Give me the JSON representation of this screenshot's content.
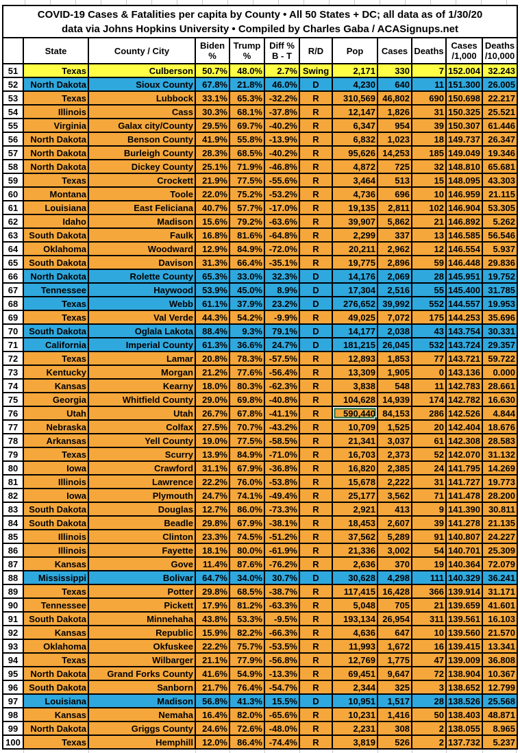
{
  "title": {
    "line1": "COVID-19 Cases & Fatalities per capita by County • All 50 States + DC; all data as of 1/30/20",
    "line2": "data via Johns Hopkins University • Compiled by Charles Gaba / ACASignups.net"
  },
  "colors": {
    "republican_row": "#F5A73B",
    "democratic_row": "#2FA8DE",
    "swing_row": "#FFFF45",
    "selection_border": "#1E7145",
    "grid_border": "#000000"
  },
  "selection": {
    "rank": "76",
    "column": "pop"
  },
  "columns": [
    {
      "key": "rank",
      "label": "",
      "align": "center"
    },
    {
      "key": "state",
      "label": "State",
      "align": "right"
    },
    {
      "key": "county",
      "label": "County / City",
      "align": "right"
    },
    {
      "key": "biden",
      "label": "Biden\n%",
      "align": "right"
    },
    {
      "key": "trump",
      "label": "Trump\n%",
      "align": "right"
    },
    {
      "key": "diff",
      "label": "Diff %\nB - T",
      "align": "right"
    },
    {
      "key": "rd",
      "label": "R/D",
      "align": "center"
    },
    {
      "key": "pop",
      "label": "Pop",
      "align": "right"
    },
    {
      "key": "cases",
      "label": "Cases",
      "align": "right"
    },
    {
      "key": "deaths",
      "label": "Deaths",
      "align": "right"
    },
    {
      "key": "cases_per_1000",
      "label": "Cases\n/1,000",
      "align": "right"
    },
    {
      "key": "deaths_per_10000",
      "label": "Deaths\n/10,000",
      "align": "right"
    }
  ],
  "rows": [
    {
      "rank": "51",
      "state": "Texas",
      "county": "Culberson",
      "biden": "50.7%",
      "trump": "48.0%",
      "diff": "2.7%",
      "rd": "Swing",
      "pop": "2,171",
      "cases": "330",
      "deaths": "7",
      "cases_per_1000": "152.004",
      "deaths_per_10000": "32.243"
    },
    {
      "rank": "52",
      "state": "North Dakota",
      "county": "Sioux County",
      "biden": "67.8%",
      "trump": "21.8%",
      "diff": "46.0%",
      "rd": "D",
      "pop": "4,230",
      "cases": "640",
      "deaths": "11",
      "cases_per_1000": "151.300",
      "deaths_per_10000": "26.005"
    },
    {
      "rank": "53",
      "state": "Texas",
      "county": "Lubbock",
      "biden": "33.1%",
      "trump": "65.3%",
      "diff": "-32.2%",
      "rd": "R",
      "pop": "310,569",
      "cases": "46,802",
      "deaths": "690",
      "cases_per_1000": "150.698",
      "deaths_per_10000": "22.217"
    },
    {
      "rank": "54",
      "state": "Illinois",
      "county": "Cass",
      "biden": "30.3%",
      "trump": "68.1%",
      "diff": "-37.8%",
      "rd": "R",
      "pop": "12,147",
      "cases": "1,826",
      "deaths": "31",
      "cases_per_1000": "150.325",
      "deaths_per_10000": "25.521"
    },
    {
      "rank": "55",
      "state": "Virginia",
      "county": "Galax city/County",
      "biden": "29.5%",
      "trump": "69.7%",
      "diff": "-40.2%",
      "rd": "R",
      "pop": "6,347",
      "cases": "954",
      "deaths": "39",
      "cases_per_1000": "150.307",
      "deaths_per_10000": "61.446"
    },
    {
      "rank": "56",
      "state": "North Dakota",
      "county": "Benson County",
      "biden": "41.9%",
      "trump": "55.8%",
      "diff": "-13.9%",
      "rd": "R",
      "pop": "6,832",
      "cases": "1,023",
      "deaths": "18",
      "cases_per_1000": "149.737",
      "deaths_per_10000": "26.347"
    },
    {
      "rank": "57",
      "state": "North Dakota",
      "county": "Burleigh County",
      "biden": "28.3%",
      "trump": "68.5%",
      "diff": "-40.2%",
      "rd": "R",
      "pop": "95,626",
      "cases": "14,253",
      "deaths": "185",
      "cases_per_1000": "149.049",
      "deaths_per_10000": "19.346"
    },
    {
      "rank": "58",
      "state": "North Dakota",
      "county": "Dickey County",
      "biden": "25.1%",
      "trump": "71.9%",
      "diff": "-46.8%",
      "rd": "R",
      "pop": "4,872",
      "cases": "725",
      "deaths": "32",
      "cases_per_1000": "148.810",
      "deaths_per_10000": "65.681"
    },
    {
      "rank": "59",
      "state": "Texas",
      "county": "Crockett",
      "biden": "21.9%",
      "trump": "77.5%",
      "diff": "-55.6%",
      "rd": "R",
      "pop": "3,464",
      "cases": "513",
      "deaths": "15",
      "cases_per_1000": "148.095",
      "deaths_per_10000": "43.303"
    },
    {
      "rank": "60",
      "state": "Montana",
      "county": "Toole",
      "biden": "22.0%",
      "trump": "75.2%",
      "diff": "-53.2%",
      "rd": "R",
      "pop": "4,736",
      "cases": "696",
      "deaths": "10",
      "cases_per_1000": "146.959",
      "deaths_per_10000": "21.115"
    },
    {
      "rank": "61",
      "state": "Louisiana",
      "county": "East Feliciana",
      "biden": "40.7%",
      "trump": "57.7%",
      "diff": "-17.0%",
      "rd": "R",
      "pop": "19,135",
      "cases": "2,811",
      "deaths": "102",
      "cases_per_1000": "146.904",
      "deaths_per_10000": "53.305"
    },
    {
      "rank": "62",
      "state": "Idaho",
      "county": "Madison",
      "biden": "15.6%",
      "trump": "79.2%",
      "diff": "-63.6%",
      "rd": "R",
      "pop": "39,907",
      "cases": "5,862",
      "deaths": "21",
      "cases_per_1000": "146.892",
      "deaths_per_10000": "5.262"
    },
    {
      "rank": "63",
      "state": "South Dakota",
      "county": "Faulk",
      "biden": "16.8%",
      "trump": "81.6%",
      "diff": "-64.8%",
      "rd": "R",
      "pop": "2,299",
      "cases": "337",
      "deaths": "13",
      "cases_per_1000": "146.585",
      "deaths_per_10000": "56.546"
    },
    {
      "rank": "64",
      "state": "Oklahoma",
      "county": "Woodward",
      "biden": "12.9%",
      "trump": "84.9%",
      "diff": "-72.0%",
      "rd": "R",
      "pop": "20,211",
      "cases": "2,962",
      "deaths": "12",
      "cases_per_1000": "146.554",
      "deaths_per_10000": "5.937"
    },
    {
      "rank": "65",
      "state": "South Dakota",
      "county": "Davison",
      "biden": "31.3%",
      "trump": "66.4%",
      "diff": "-35.1%",
      "rd": "R",
      "pop": "19,775",
      "cases": "2,896",
      "deaths": "59",
      "cases_per_1000": "146.448",
      "deaths_per_10000": "29.836"
    },
    {
      "rank": "66",
      "state": "North Dakota",
      "county": "Rolette County",
      "biden": "65.3%",
      "trump": "33.0%",
      "diff": "32.3%",
      "rd": "D",
      "pop": "14,176",
      "cases": "2,069",
      "deaths": "28",
      "cases_per_1000": "145.951",
      "deaths_per_10000": "19.752"
    },
    {
      "rank": "67",
      "state": "Tennessee",
      "county": "Haywood",
      "biden": "53.9%",
      "trump": "45.0%",
      "diff": "8.9%",
      "rd": "D",
      "pop": "17,304",
      "cases": "2,516",
      "deaths": "55",
      "cases_per_1000": "145.400",
      "deaths_per_10000": "31.785"
    },
    {
      "rank": "68",
      "state": "Texas",
      "county": "Webb",
      "biden": "61.1%",
      "trump": "37.9%",
      "diff": "23.2%",
      "rd": "D",
      "pop": "276,652",
      "cases": "39,992",
      "deaths": "552",
      "cases_per_1000": "144.557",
      "deaths_per_10000": "19.953"
    },
    {
      "rank": "69",
      "state": "Texas",
      "county": "Val Verde",
      "biden": "44.3%",
      "trump": "54.2%",
      "diff": "-9.9%",
      "rd": "R",
      "pop": "49,025",
      "cases": "7,072",
      "deaths": "175",
      "cases_per_1000": "144.253",
      "deaths_per_10000": "35.696"
    },
    {
      "rank": "70",
      "state": "South Dakota",
      "county": "Oglala Lakota",
      "biden": "88.4%",
      "trump": "9.3%",
      "diff": "79.1%",
      "rd": "D",
      "pop": "14,177",
      "cases": "2,038",
      "deaths": "43",
      "cases_per_1000": "143.754",
      "deaths_per_10000": "30.331"
    },
    {
      "rank": "71",
      "state": "California",
      "county": "Imperial County",
      "biden": "61.3%",
      "trump": "36.6%",
      "diff": "24.7%",
      "rd": "D",
      "pop": "181,215",
      "cases": "26,045",
      "deaths": "532",
      "cases_per_1000": "143.724",
      "deaths_per_10000": "29.357"
    },
    {
      "rank": "72",
      "state": "Texas",
      "county": "Lamar",
      "biden": "20.8%",
      "trump": "78.3%",
      "diff": "-57.5%",
      "rd": "R",
      "pop": "12,893",
      "cases": "1,853",
      "deaths": "77",
      "cases_per_1000": "143.721",
      "deaths_per_10000": "59.722"
    },
    {
      "rank": "73",
      "state": "Kentucky",
      "county": "Morgan",
      "biden": "21.2%",
      "trump": "77.6%",
      "diff": "-56.4%",
      "rd": "R",
      "pop": "13,309",
      "cases": "1,905",
      "deaths": "0",
      "cases_per_1000": "143.136",
      "deaths_per_10000": "0.000"
    },
    {
      "rank": "74",
      "state": "Kansas",
      "county": "Kearny",
      "biden": "18.0%",
      "trump": "80.3%",
      "diff": "-62.3%",
      "rd": "R",
      "pop": "3,838",
      "cases": "548",
      "deaths": "11",
      "cases_per_1000": "142.783",
      "deaths_per_10000": "28.661"
    },
    {
      "rank": "75",
      "state": "Georgia",
      "county": "Whitfield County",
      "biden": "29.0%",
      "trump": "69.8%",
      "diff": "-40.8%",
      "rd": "R",
      "pop": "104,628",
      "cases": "14,939",
      "deaths": "174",
      "cases_per_1000": "142.782",
      "deaths_per_10000": "16.630"
    },
    {
      "rank": "76",
      "state": "Utah",
      "county": "Utah",
      "biden": "26.7%",
      "trump": "67.8%",
      "diff": "-41.1%",
      "rd": "R",
      "pop": "590,440",
      "cases": "84,153",
      "deaths": "286",
      "cases_per_1000": "142.526",
      "deaths_per_10000": "4.844"
    },
    {
      "rank": "77",
      "state": "Nebraska",
      "county": "Colfax",
      "biden": "27.5%",
      "trump": "70.7%",
      "diff": "-43.2%",
      "rd": "R",
      "pop": "10,709",
      "cases": "1,525",
      "deaths": "20",
      "cases_per_1000": "142.404",
      "deaths_per_10000": "18.676"
    },
    {
      "rank": "78",
      "state": "Arkansas",
      "county": "Yell County",
      "biden": "19.0%",
      "trump": "77.5%",
      "diff": "-58.5%",
      "rd": "R",
      "pop": "21,341",
      "cases": "3,037",
      "deaths": "61",
      "cases_per_1000": "142.308",
      "deaths_per_10000": "28.583"
    },
    {
      "rank": "79",
      "state": "Texas",
      "county": "Scurry",
      "biden": "13.9%",
      "trump": "84.9%",
      "diff": "-71.0%",
      "rd": "R",
      "pop": "16,703",
      "cases": "2,373",
      "deaths": "52",
      "cases_per_1000": "142.070",
      "deaths_per_10000": "31.132"
    },
    {
      "rank": "80",
      "state": "Iowa",
      "county": "Crawford",
      "biden": "31.1%",
      "trump": "67.9%",
      "diff": "-36.8%",
      "rd": "R",
      "pop": "16,820",
      "cases": "2,385",
      "deaths": "24",
      "cases_per_1000": "141.795",
      "deaths_per_10000": "14.269"
    },
    {
      "rank": "81",
      "state": "Illinois",
      "county": "Lawrence",
      "biden": "22.2%",
      "trump": "76.0%",
      "diff": "-53.8%",
      "rd": "R",
      "pop": "15,678",
      "cases": "2,222",
      "deaths": "31",
      "cases_per_1000": "141.727",
      "deaths_per_10000": "19.773"
    },
    {
      "rank": "82",
      "state": "Iowa",
      "county": "Plymouth",
      "biden": "24.7%",
      "trump": "74.1%",
      "diff": "-49.4%",
      "rd": "R",
      "pop": "25,177",
      "cases": "3,562",
      "deaths": "71",
      "cases_per_1000": "141.478",
      "deaths_per_10000": "28.200"
    },
    {
      "rank": "83",
      "state": "South Dakota",
      "county": "Douglas",
      "biden": "12.7%",
      "trump": "86.0%",
      "diff": "-73.3%",
      "rd": "R",
      "pop": "2,921",
      "cases": "413",
      "deaths": "9",
      "cases_per_1000": "141.390",
      "deaths_per_10000": "30.811"
    },
    {
      "rank": "84",
      "state": "South Dakota",
      "county": "Beadle",
      "biden": "29.8%",
      "trump": "67.9%",
      "diff": "-38.1%",
      "rd": "R",
      "pop": "18,453",
      "cases": "2,607",
      "deaths": "39",
      "cases_per_1000": "141.278",
      "deaths_per_10000": "21.135"
    },
    {
      "rank": "85",
      "state": "Illinois",
      "county": "Clinton",
      "biden": "23.3%",
      "trump": "74.5%",
      "diff": "-51.2%",
      "rd": "R",
      "pop": "37,562",
      "cases": "5,289",
      "deaths": "91",
      "cases_per_1000": "140.807",
      "deaths_per_10000": "24.227"
    },
    {
      "rank": "86",
      "state": "Illinois",
      "county": "Fayette",
      "biden": "18.1%",
      "trump": "80.0%",
      "diff": "-61.9%",
      "rd": "R",
      "pop": "21,336",
      "cases": "3,002",
      "deaths": "54",
      "cases_per_1000": "140.701",
      "deaths_per_10000": "25.309"
    },
    {
      "rank": "87",
      "state": "Kansas",
      "county": "Gove",
      "biden": "11.4%",
      "trump": "87.6%",
      "diff": "-76.2%",
      "rd": "R",
      "pop": "2,636",
      "cases": "370",
      "deaths": "19",
      "cases_per_1000": "140.364",
      "deaths_per_10000": "72.079"
    },
    {
      "rank": "88",
      "state": "Mississippi",
      "county": "Bolivar",
      "biden": "64.7%",
      "trump": "34.0%",
      "diff": "30.7%",
      "rd": "D",
      "pop": "30,628",
      "cases": "4,298",
      "deaths": "111",
      "cases_per_1000": "140.329",
      "deaths_per_10000": "36.241"
    },
    {
      "rank": "89",
      "state": "Texas",
      "county": "Potter",
      "biden": "29.8%",
      "trump": "68.5%",
      "diff": "-38.7%",
      "rd": "R",
      "pop": "117,415",
      "cases": "16,428",
      "deaths": "366",
      "cases_per_1000": "139.914",
      "deaths_per_10000": "31.171"
    },
    {
      "rank": "90",
      "state": "Tennessee",
      "county": "Pickett",
      "biden": "17.9%",
      "trump": "81.2%",
      "diff": "-63.3%",
      "rd": "R",
      "pop": "5,048",
      "cases": "705",
      "deaths": "21",
      "cases_per_1000": "139.659",
      "deaths_per_10000": "41.601"
    },
    {
      "rank": "91",
      "state": "South Dakota",
      "county": "Minnehaha",
      "biden": "43.8%",
      "trump": "53.3%",
      "diff": "-9.5%",
      "rd": "R",
      "pop": "193,134",
      "cases": "26,954",
      "deaths": "311",
      "cases_per_1000": "139.561",
      "deaths_per_10000": "16.103"
    },
    {
      "rank": "92",
      "state": "Kansas",
      "county": "Republic",
      "biden": "15.9%",
      "trump": "82.2%",
      "diff": "-66.3%",
      "rd": "R",
      "pop": "4,636",
      "cases": "647",
      "deaths": "10",
      "cases_per_1000": "139.560",
      "deaths_per_10000": "21.570"
    },
    {
      "rank": "93",
      "state": "Oklahoma",
      "county": "Okfuskee",
      "biden": "22.2%",
      "trump": "75.7%",
      "diff": "-53.5%",
      "rd": "R",
      "pop": "11,993",
      "cases": "1,672",
      "deaths": "16",
      "cases_per_1000": "139.415",
      "deaths_per_10000": "13.341"
    },
    {
      "rank": "94",
      "state": "Texas",
      "county": "Wilbarger",
      "biden": "21.1%",
      "trump": "77.9%",
      "diff": "-56.8%",
      "rd": "R",
      "pop": "12,769",
      "cases": "1,775",
      "deaths": "47",
      "cases_per_1000": "139.009",
      "deaths_per_10000": "36.808"
    },
    {
      "rank": "95",
      "state": "North Dakota",
      "county": "Grand Forks County",
      "biden": "41.6%",
      "trump": "54.9%",
      "diff": "-13.3%",
      "rd": "R",
      "pop": "69,451",
      "cases": "9,647",
      "deaths": "72",
      "cases_per_1000": "138.904",
      "deaths_per_10000": "10.367"
    },
    {
      "rank": "96",
      "state": "South Dakota",
      "county": "Sanborn",
      "biden": "21.7%",
      "trump": "76.4%",
      "diff": "-54.7%",
      "rd": "R",
      "pop": "2,344",
      "cases": "325",
      "deaths": "3",
      "cases_per_1000": "138.652",
      "deaths_per_10000": "12.799"
    },
    {
      "rank": "97",
      "state": "Louisiana",
      "county": "Madison",
      "biden": "56.8%",
      "trump": "41.3%",
      "diff": "15.5%",
      "rd": "D",
      "pop": "10,951",
      "cases": "1,517",
      "deaths": "28",
      "cases_per_1000": "138.526",
      "deaths_per_10000": "25.568"
    },
    {
      "rank": "98",
      "state": "Kansas",
      "county": "Nemaha",
      "biden": "16.4%",
      "trump": "82.0%",
      "diff": "-65.6%",
      "rd": "R",
      "pop": "10,231",
      "cases": "1,416",
      "deaths": "50",
      "cases_per_1000": "138.403",
      "deaths_per_10000": "48.871"
    },
    {
      "rank": "99",
      "state": "North Dakota",
      "county": "Griggs County",
      "biden": "24.6%",
      "trump": "72.6%",
      "diff": "-48.0%",
      "rd": "R",
      "pop": "2,231",
      "cases": "308",
      "deaths": "2",
      "cases_per_1000": "138.055",
      "deaths_per_10000": "8.965"
    },
    {
      "rank": "100",
      "state": "Texas",
      "county": "Hemphill",
      "biden": "12.0%",
      "trump": "86.4%",
      "diff": "-74.4%",
      "rd": "R",
      "pop": "3,819",
      "cases": "526",
      "deaths": "2",
      "cases_per_1000": "137.732",
      "deaths_per_10000": "5.237"
    }
  ]
}
